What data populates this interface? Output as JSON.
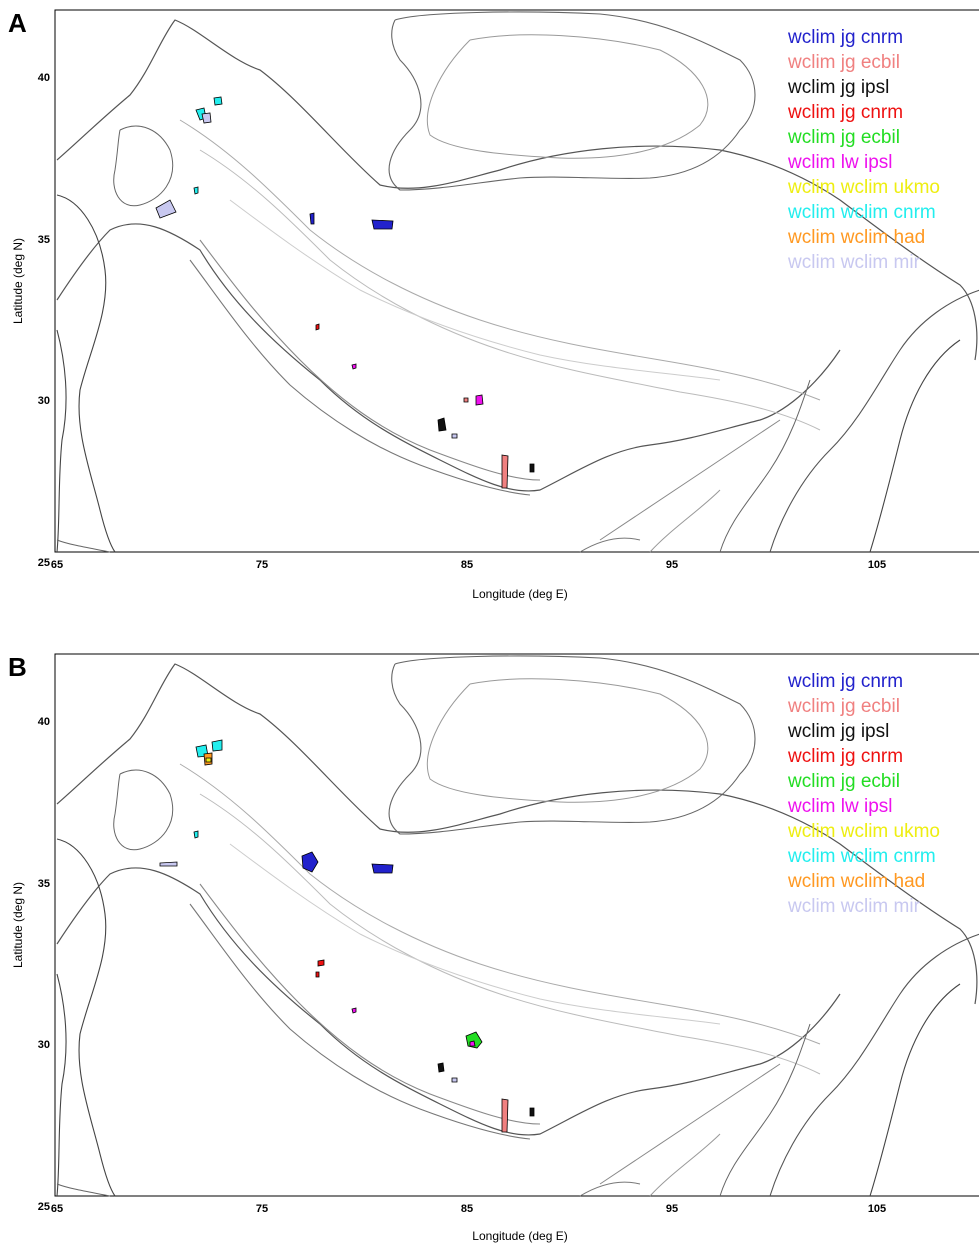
{
  "panels": [
    {
      "label": "A",
      "xlabel": "Longitude (deg E)",
      "ylabel": "Latitude (deg N)",
      "xticks": [
        "65",
        "75",
        "85",
        "95",
        "105"
      ],
      "yticks": [
        "40",
        "35",
        "30",
        "25"
      ],
      "legend": [
        {
          "text": "wclim jg cnrm",
          "color": "#2222cc"
        },
        {
          "text": "wclim jg ecbil",
          "color": "#f08080"
        },
        {
          "text": "wclim jg ipsl",
          "color": "#111111"
        },
        {
          "text": "wclim jg cnrm",
          "color": "#ee1111"
        },
        {
          "text": "wclim jg ecbil",
          "color": "#22dd22"
        },
        {
          "text": "wclim lw ipsl",
          "color": "#ee11ee"
        },
        {
          "text": "wclim wclim ukmo",
          "color": "#eeee11"
        },
        {
          "text": "wclim wclim cnrm",
          "color": "#22eeee"
        },
        {
          "text": "wclim wclim had",
          "color": "#ff9922"
        },
        {
          "text": "wclim wclim mir",
          "color": "#c8c8f0"
        }
      ]
    },
    {
      "label": "B",
      "xlabel": "Longitude (deg E)",
      "ylabel": "Latitude (deg N)",
      "xticks": [
        "65",
        "75",
        "85",
        "95",
        "105"
      ],
      "yticks": [
        "40",
        "35",
        "30",
        "25"
      ],
      "legend": [
        {
          "text": "wclim jg cnrm",
          "color": "#2222cc"
        },
        {
          "text": "wclim jg ecbil",
          "color": "#f08080"
        },
        {
          "text": "wclim jg ipsl",
          "color": "#111111"
        },
        {
          "text": "wclim jg cnrm",
          "color": "#ee1111"
        },
        {
          "text": "wclim jg ecbil",
          "color": "#22dd22"
        },
        {
          "text": "wclim lw ipsl",
          "color": "#ee11ee"
        },
        {
          "text": "wclim wclim ukmo",
          "color": "#eeee11"
        },
        {
          "text": "wclim wclim cnrm",
          "color": "#22eeee"
        },
        {
          "text": "wclim wclim had",
          "color": "#ff9922"
        },
        {
          "text": "wclim wclim mir",
          "color": "#c8c8f0"
        }
      ]
    }
  ]
}
